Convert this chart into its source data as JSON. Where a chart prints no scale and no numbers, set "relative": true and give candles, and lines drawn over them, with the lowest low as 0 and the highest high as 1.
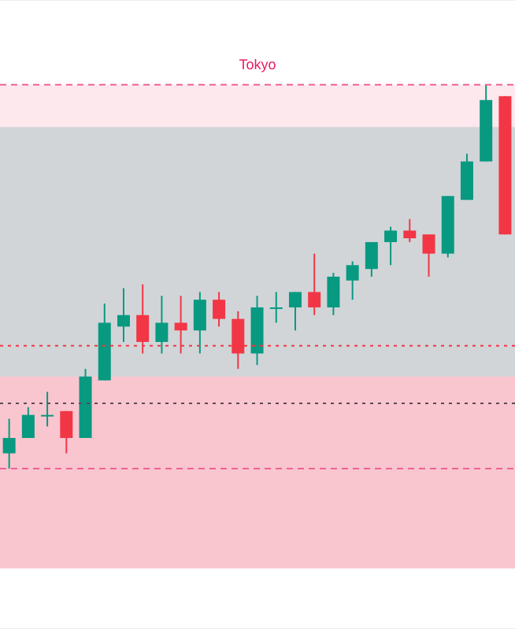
{
  "chart_data": {
    "type": "candlestick",
    "relative": true,
    "grid": "y",
    "categories": [
      null,
      null,
      null,
      null,
      null,
      null,
      null,
      null,
      null,
      null,
      null,
      null,
      null,
      null,
      null,
      null,
      null,
      null,
      null,
      null,
      null,
      null,
      null,
      null,
      null,
      null,
      null
    ],
    "ohlc": [
      [
        0.04,
        0.13,
        0,
        0.08
      ],
      [
        0.08,
        0.16,
        0.08,
        0.14
      ],
      [
        0.14,
        0.2,
        0.11,
        0.14
      ],
      [
        0.15,
        0.15,
        0.04,
        0.08
      ],
      [
        0.08,
        0.26,
        0.08,
        0.24
      ],
      [
        0.23,
        0.43,
        0.23,
        0.38
      ],
      [
        0.37,
        0.47,
        0.33,
        0.4
      ],
      [
        0.4,
        0.48,
        0.3,
        0.33
      ],
      [
        0.33,
        0.45,
        0.3,
        0.38
      ],
      [
        0.38,
        0.45,
        0.3,
        0.36
      ],
      [
        0.36,
        0.46,
        0.3,
        0.44
      ],
      [
        0.44,
        0.46,
        0.37,
        0.39
      ],
      [
        0.39,
        0.41,
        0.26,
        0.3
      ],
      [
        0.3,
        0.45,
        0.27,
        0.42
      ],
      [
        0.42,
        0.46,
        0.38,
        0.42
      ],
      [
        0.42,
        0.46,
        0.36,
        0.46
      ],
      [
        0.46,
        0.56,
        0.4,
        0.42
      ],
      [
        0.42,
        0.51,
        0.4,
        0.5
      ],
      [
        0.49,
        0.54,
        0.44,
        0.53
      ],
      [
        0.52,
        0.59,
        0.5,
        0.59
      ],
      [
        0.59,
        0.63,
        0.53,
        0.62
      ],
      [
        0.62,
        0.65,
        0.59,
        0.6
      ],
      [
        0.61,
        0.61,
        0.5,
        0.56
      ],
      [
        0.56,
        0.71,
        0.55,
        0.71
      ],
      [
        0.7,
        0.82,
        0.7,
        0.8
      ],
      [
        0.8,
        1,
        0.8,
        0.96
      ],
      [
        0.97,
        0.97,
        0.61,
        0.61
      ]
    ],
    "colors": [
      "#089981",
      "#089981",
      "#089981",
      "#f23645",
      "#089981",
      "#089981",
      "#089981",
      "#f23645",
      "#089981",
      "#f23645",
      "#089981",
      "#f23645",
      "#f23645",
      "#089981",
      "#089981",
      "#089981",
      "#f23645",
      "#089981",
      "#089981",
      "#089981",
      "#089981",
      "#f23645",
      "#f23645",
      "#089981",
      "#089981",
      "#089981",
      "#f23645"
    ],
    "bands": [
      {
        "axis": "y",
        "from": 0,
        "to": 1,
        "label": "Tokyo",
        "color": "#fde8ee"
      },
      {
        "axis": "y",
        "from": 0.24,
        "to": 0.89,
        "color": "#d1d5d8"
      },
      {
        "axis": "y",
        "from": -0.26,
        "to": 0.24,
        "color": "#f9c5cf"
      }
    ],
    "ref_lines": [
      {
        "axis": "y",
        "value": 1,
        "color": "#f06292",
        "line_style": "dashed"
      },
      {
        "axis": "y",
        "value": 0,
        "color": "#f06292",
        "line_style": "dashed"
      },
      {
        "axis": "y",
        "value": 0.32,
        "color": "#f23645",
        "line_style": "dotted"
      },
      {
        "axis": "y",
        "value": 0.17,
        "color": "#5d4b55",
        "line_style": "dotted"
      }
    ]
  }
}
